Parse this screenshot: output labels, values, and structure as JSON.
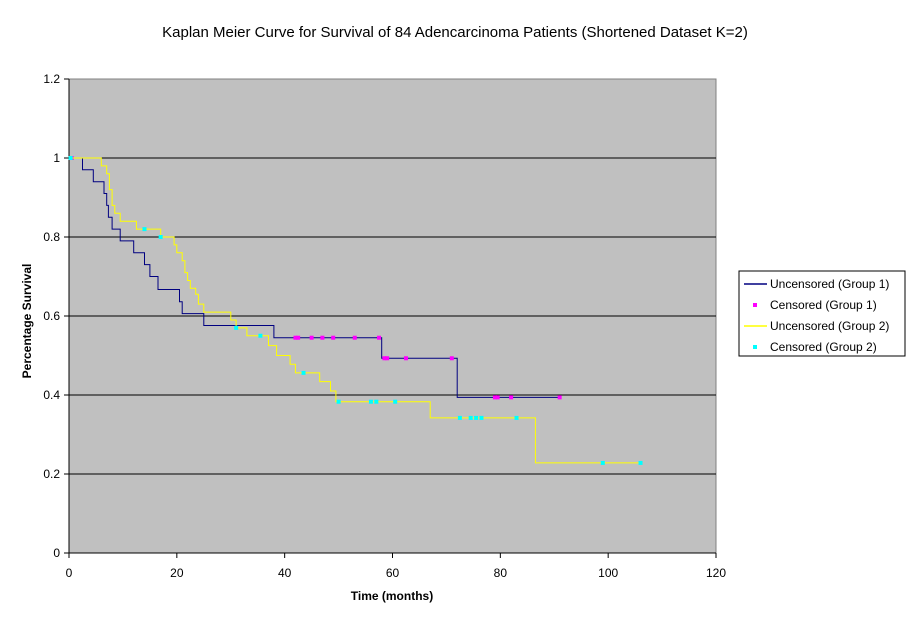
{
  "chart_data": {
    "type": "line",
    "title": "Kaplan Meier Curve for Survival of 84 Adencarcinoma Patients (Shortened Dataset K=2)",
    "xlabel": "Time (months)",
    "ylabel": "Percentage Survival",
    "xlim": [
      0,
      120
    ],
    "ylim": [
      0,
      1.2
    ],
    "x_ticks": [
      "0",
      "20",
      "40",
      "60",
      "80",
      "100",
      "120"
    ],
    "y_ticks": [
      "0",
      "0.2",
      "0.4",
      "0.6",
      "0.8",
      "1",
      "1.2"
    ],
    "grid": "horizontal",
    "plot_background": "#c0c0c0",
    "legend_position": "right",
    "series": [
      {
        "name": "Uncensored (Group 1)",
        "kind": "step",
        "color": "#000080",
        "points": [
          [
            0,
            1.0
          ],
          [
            2.5,
            1.0
          ],
          [
            2.5,
            0.97
          ],
          [
            4.5,
            0.97
          ],
          [
            4.5,
            0.94
          ],
          [
            6.5,
            0.94
          ],
          [
            6.5,
            0.91
          ],
          [
            7,
            0.91
          ],
          [
            7,
            0.88
          ],
          [
            7.3,
            0.88
          ],
          [
            7.3,
            0.85
          ],
          [
            8,
            0.85
          ],
          [
            8,
            0.82
          ],
          [
            9.5,
            0.82
          ],
          [
            9.5,
            0.79
          ],
          [
            12,
            0.79
          ],
          [
            12,
            0.76
          ],
          [
            14,
            0.76
          ],
          [
            14,
            0.73
          ],
          [
            15,
            0.73
          ],
          [
            15,
            0.7
          ],
          [
            16.5,
            0.7
          ],
          [
            16.5,
            0.667
          ],
          [
            20.5,
            0.667
          ],
          [
            20.5,
            0.636
          ],
          [
            21,
            0.636
          ],
          [
            21,
            0.606
          ],
          [
            25,
            0.606
          ],
          [
            25,
            0.576
          ],
          [
            38,
            0.576
          ],
          [
            38,
            0.545
          ],
          [
            58,
            0.545
          ],
          [
            58,
            0.493
          ],
          [
            72,
            0.493
          ],
          [
            72,
            0.394
          ],
          [
            91,
            0.394
          ]
        ]
      },
      {
        "name": "Censored (Group 1)",
        "kind": "markers",
        "color": "#ff00ff",
        "points": [
          [
            0.5,
            1.0
          ],
          [
            42,
            0.545
          ],
          [
            42.5,
            0.545
          ],
          [
            45,
            0.545
          ],
          [
            47,
            0.545
          ],
          [
            49,
            0.545
          ],
          [
            53,
            0.545
          ],
          [
            57.5,
            0.545
          ],
          [
            58.5,
            0.493
          ],
          [
            59,
            0.493
          ],
          [
            62.5,
            0.493
          ],
          [
            71,
            0.493
          ],
          [
            79,
            0.394
          ],
          [
            79.5,
            0.394
          ],
          [
            82,
            0.394
          ],
          [
            91,
            0.394
          ]
        ]
      },
      {
        "name": "Uncensored (Group 2)",
        "kind": "step",
        "color": "#ffff00",
        "points": [
          [
            0,
            1.0
          ],
          [
            6,
            1.0
          ],
          [
            6,
            0.98
          ],
          [
            7,
            0.98
          ],
          [
            7,
            0.96
          ],
          [
            7.5,
            0.96
          ],
          [
            7.5,
            0.92
          ],
          [
            8,
            0.92
          ],
          [
            8,
            0.88
          ],
          [
            8.5,
            0.88
          ],
          [
            8.5,
            0.86
          ],
          [
            9.5,
            0.86
          ],
          [
            9.5,
            0.84
          ],
          [
            12.5,
            0.84
          ],
          [
            12.5,
            0.82
          ],
          [
            17,
            0.82
          ],
          [
            17,
            0.8
          ],
          [
            19.5,
            0.8
          ],
          [
            19.5,
            0.78
          ],
          [
            20,
            0.78
          ],
          [
            20,
            0.76
          ],
          [
            21,
            0.76
          ],
          [
            21,
            0.74
          ],
          [
            21.5,
            0.74
          ],
          [
            21.5,
            0.71
          ],
          [
            22,
            0.71
          ],
          [
            22,
            0.69
          ],
          [
            22.5,
            0.69
          ],
          [
            22.5,
            0.67
          ],
          [
            23.5,
            0.67
          ],
          [
            23.5,
            0.655
          ],
          [
            24,
            0.655
          ],
          [
            24,
            0.63
          ],
          [
            25,
            0.63
          ],
          [
            25,
            0.61
          ],
          [
            30,
            0.61
          ],
          [
            30,
            0.59
          ],
          [
            31,
            0.59
          ],
          [
            31,
            0.57
          ],
          [
            33,
            0.57
          ],
          [
            33,
            0.55
          ],
          [
            37,
            0.55
          ],
          [
            37,
            0.525
          ],
          [
            38.5,
            0.525
          ],
          [
            38.5,
            0.5
          ],
          [
            41,
            0.5
          ],
          [
            41,
            0.478
          ],
          [
            42,
            0.478
          ],
          [
            42,
            0.456
          ],
          [
            46.5,
            0.456
          ],
          [
            46.5,
            0.434
          ],
          [
            48.5,
            0.434
          ],
          [
            48.5,
            0.41
          ],
          [
            49.5,
            0.41
          ],
          [
            49.5,
            0.383
          ],
          [
            67,
            0.383
          ],
          [
            67,
            0.342
          ],
          [
            86.5,
            0.342
          ],
          [
            86.5,
            0.228
          ],
          [
            106,
            0.228
          ]
        ]
      },
      {
        "name": "Censored (Group 2)",
        "kind": "markers",
        "color": "#00ffff",
        "points": [
          [
            0.3,
            1.0
          ],
          [
            14,
            0.82
          ],
          [
            17,
            0.8
          ],
          [
            31,
            0.57
          ],
          [
            35.5,
            0.55
          ],
          [
            43.5,
            0.456
          ],
          [
            50,
            0.383
          ],
          [
            56,
            0.383
          ],
          [
            57,
            0.383
          ],
          [
            60.5,
            0.383
          ],
          [
            72.5,
            0.342
          ],
          [
            74.5,
            0.342
          ],
          [
            75.5,
            0.342
          ],
          [
            76.5,
            0.342
          ],
          [
            83,
            0.342
          ],
          [
            99,
            0.228
          ],
          [
            106,
            0.228
          ]
        ]
      }
    ]
  }
}
